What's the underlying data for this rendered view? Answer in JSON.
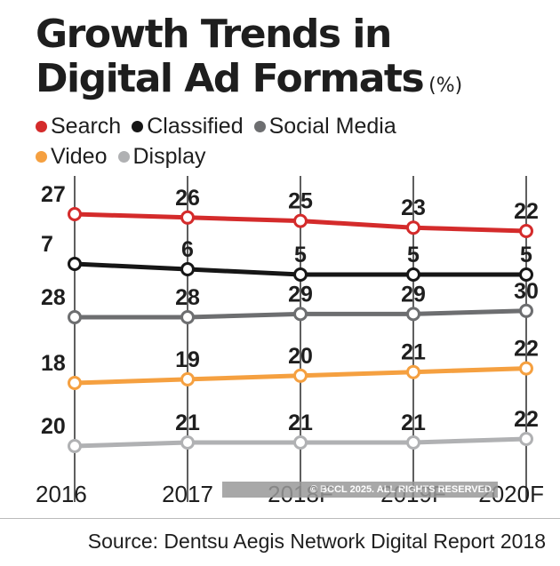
{
  "title": {
    "line1": "Growth Trends in",
    "line2": "Digital Ad Formats",
    "unit": "(%)"
  },
  "copyright": "© BCCL 2025. ALL RIGHTS RESERVED.",
  "source": "Source: Dentsu Aegis Network Digital Report 2018",
  "chart_data": {
    "type": "line",
    "title": "Growth Trends in Digital Ad Formats",
    "unit": "(%)",
    "x": [
      "2016",
      "2017",
      "2018F",
      "2019F",
      "2020F"
    ],
    "series": [
      {
        "name": "Search",
        "color": "#d42b2b",
        "values": [
          27,
          26,
          25,
          23,
          22
        ]
      },
      {
        "name": "Classified",
        "color": "#161616",
        "values": [
          7,
          6,
          5,
          5,
          5
        ]
      },
      {
        "name": "Social Media",
        "color": "#6d6e70",
        "values": [
          28,
          28,
          29,
          29,
          30
        ]
      },
      {
        "name": "Video",
        "color": "#f5a040",
        "values": [
          18,
          19,
          20,
          21,
          22
        ]
      },
      {
        "name": "Display",
        "color": "#b0b1b3",
        "values": [
          20,
          21,
          21,
          21,
          22
        ]
      }
    ],
    "legend": [
      [
        "Search",
        "Classified",
        "Social Media"
      ],
      [
        "Video",
        "Display"
      ]
    ],
    "grid": "vertical"
  }
}
